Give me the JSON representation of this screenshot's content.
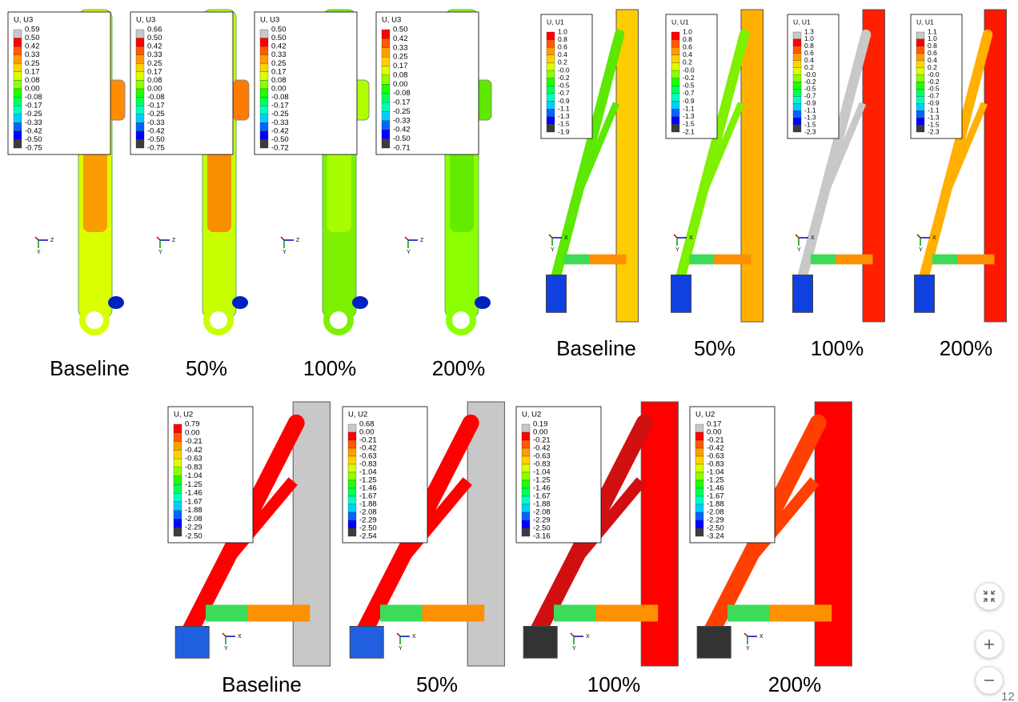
{
  "groups": [
    {
      "legend_title": "U, U3",
      "triad": [
        "Z",
        "Y"
      ],
      "panels": [
        {
          "caption": "Baseline",
          "legend": [
            "0.59",
            "0.50",
            "0.42",
            "0.33",
            "0.25",
            "0.17",
            "0.08",
            "0.00",
            "-0.08",
            "-0.17",
            "-0.25",
            "-0.33",
            "-0.42",
            "-0.50",
            "-0.75"
          ]
        },
        {
          "caption": "50%",
          "legend": [
            "0.66",
            "0.50",
            "0.42",
            "0.33",
            "0.25",
            "0.17",
            "0.08",
            "0.00",
            "-0.08",
            "-0.17",
            "-0.25",
            "-0.33",
            "-0.42",
            "-0.50",
            "-0.75"
          ]
        },
        {
          "caption": "100%",
          "legend": [
            "0.50",
            "0.50",
            "0.42",
            "0.33",
            "0.25",
            "0.17",
            "0.08",
            "0.00",
            "-0.08",
            "-0.17",
            "-0.25",
            "-0.33",
            "-0.42",
            "-0.50",
            "-0.72"
          ]
        },
        {
          "caption": "200%",
          "legend": [
            "0.50",
            "0.42",
            "0.33",
            "0.25",
            "0.17",
            "0.08",
            "0.00",
            "-0.08",
            "-0.17",
            "-0.25",
            "-0.33",
            "-0.42",
            "-0.50",
            "-0.71"
          ]
        }
      ]
    },
    {
      "legend_title": "U, U1",
      "triad": [
        "X",
        "Y"
      ],
      "panels": [
        {
          "caption": "Baseline",
          "legend": [
            "1.0",
            "0.8",
            "0.6",
            "0.4",
            "0.2",
            "-0.0",
            "-0.2",
            "-0.5",
            "-0.7",
            "-0.9",
            "-1.1",
            "-1.3",
            "-1.5",
            "-1.9"
          ]
        },
        {
          "caption": "50%",
          "legend": [
            "1.0",
            "0.8",
            "0.6",
            "0.4",
            "0.2",
            "-0.0",
            "-0.2",
            "-0.5",
            "-0.7",
            "-0.9",
            "-1.1",
            "-1.3",
            "-1.5",
            "-2.1"
          ]
        },
        {
          "caption": "100%",
          "legend": [
            "1.3",
            "1.0",
            "0.8",
            "0.6",
            "0.4",
            "0.2",
            "-0.0",
            "-0.2",
            "-0.5",
            "-0.7",
            "-0.9",
            "-1.1",
            "-1.3",
            "-1.5",
            "-2.3"
          ]
        },
        {
          "caption": "200%",
          "legend": [
            "1.1",
            "1.0",
            "0.8",
            "0.6",
            "0.4",
            "0.2",
            "-0.0",
            "-0.2",
            "-0.5",
            "-0.7",
            "-0.9",
            "-1.1",
            "-1.3",
            "-1.5",
            "-2.3"
          ]
        }
      ]
    },
    {
      "legend_title": "U, U2",
      "triad": [
        "X",
        "Y"
      ],
      "panels": [
        {
          "caption": "Baseline",
          "legend": [
            "0.79",
            "0.00",
            "-0.21",
            "-0.42",
            "-0.63",
            "-0.83",
            "-1.04",
            "-1.25",
            "-1.46",
            "-1.67",
            "-1.88",
            "-2.08",
            "-2.29",
            "-2.50"
          ]
        },
        {
          "caption": "50%",
          "legend": [
            "0.68",
            "0.00",
            "-0.21",
            "-0.42",
            "-0.63",
            "-0.83",
            "-1.04",
            "-1.25",
            "-1.46",
            "-1.67",
            "-1.88",
            "-2.08",
            "-2.29",
            "-2.50",
            "-2.54"
          ]
        },
        {
          "caption": "100%",
          "legend": [
            "0.19",
            "0.00",
            "-0.21",
            "-0.42",
            "-0.63",
            "-0.83",
            "-1.04",
            "-1.25",
            "-1.46",
            "-1.67",
            "-1.88",
            "-2.08",
            "-2.29",
            "-2.50",
            "-3.16"
          ]
        },
        {
          "caption": "200%",
          "legend": [
            "0.17",
            "0.00",
            "-0.21",
            "-0.42",
            "-0.63",
            "-0.83",
            "-1.04",
            "-1.25",
            "-1.46",
            "-1.67",
            "-1.88",
            "-2.08",
            "-2.29",
            "-2.50",
            "-3.24"
          ]
        }
      ]
    }
  ],
  "page_number": "12"
}
